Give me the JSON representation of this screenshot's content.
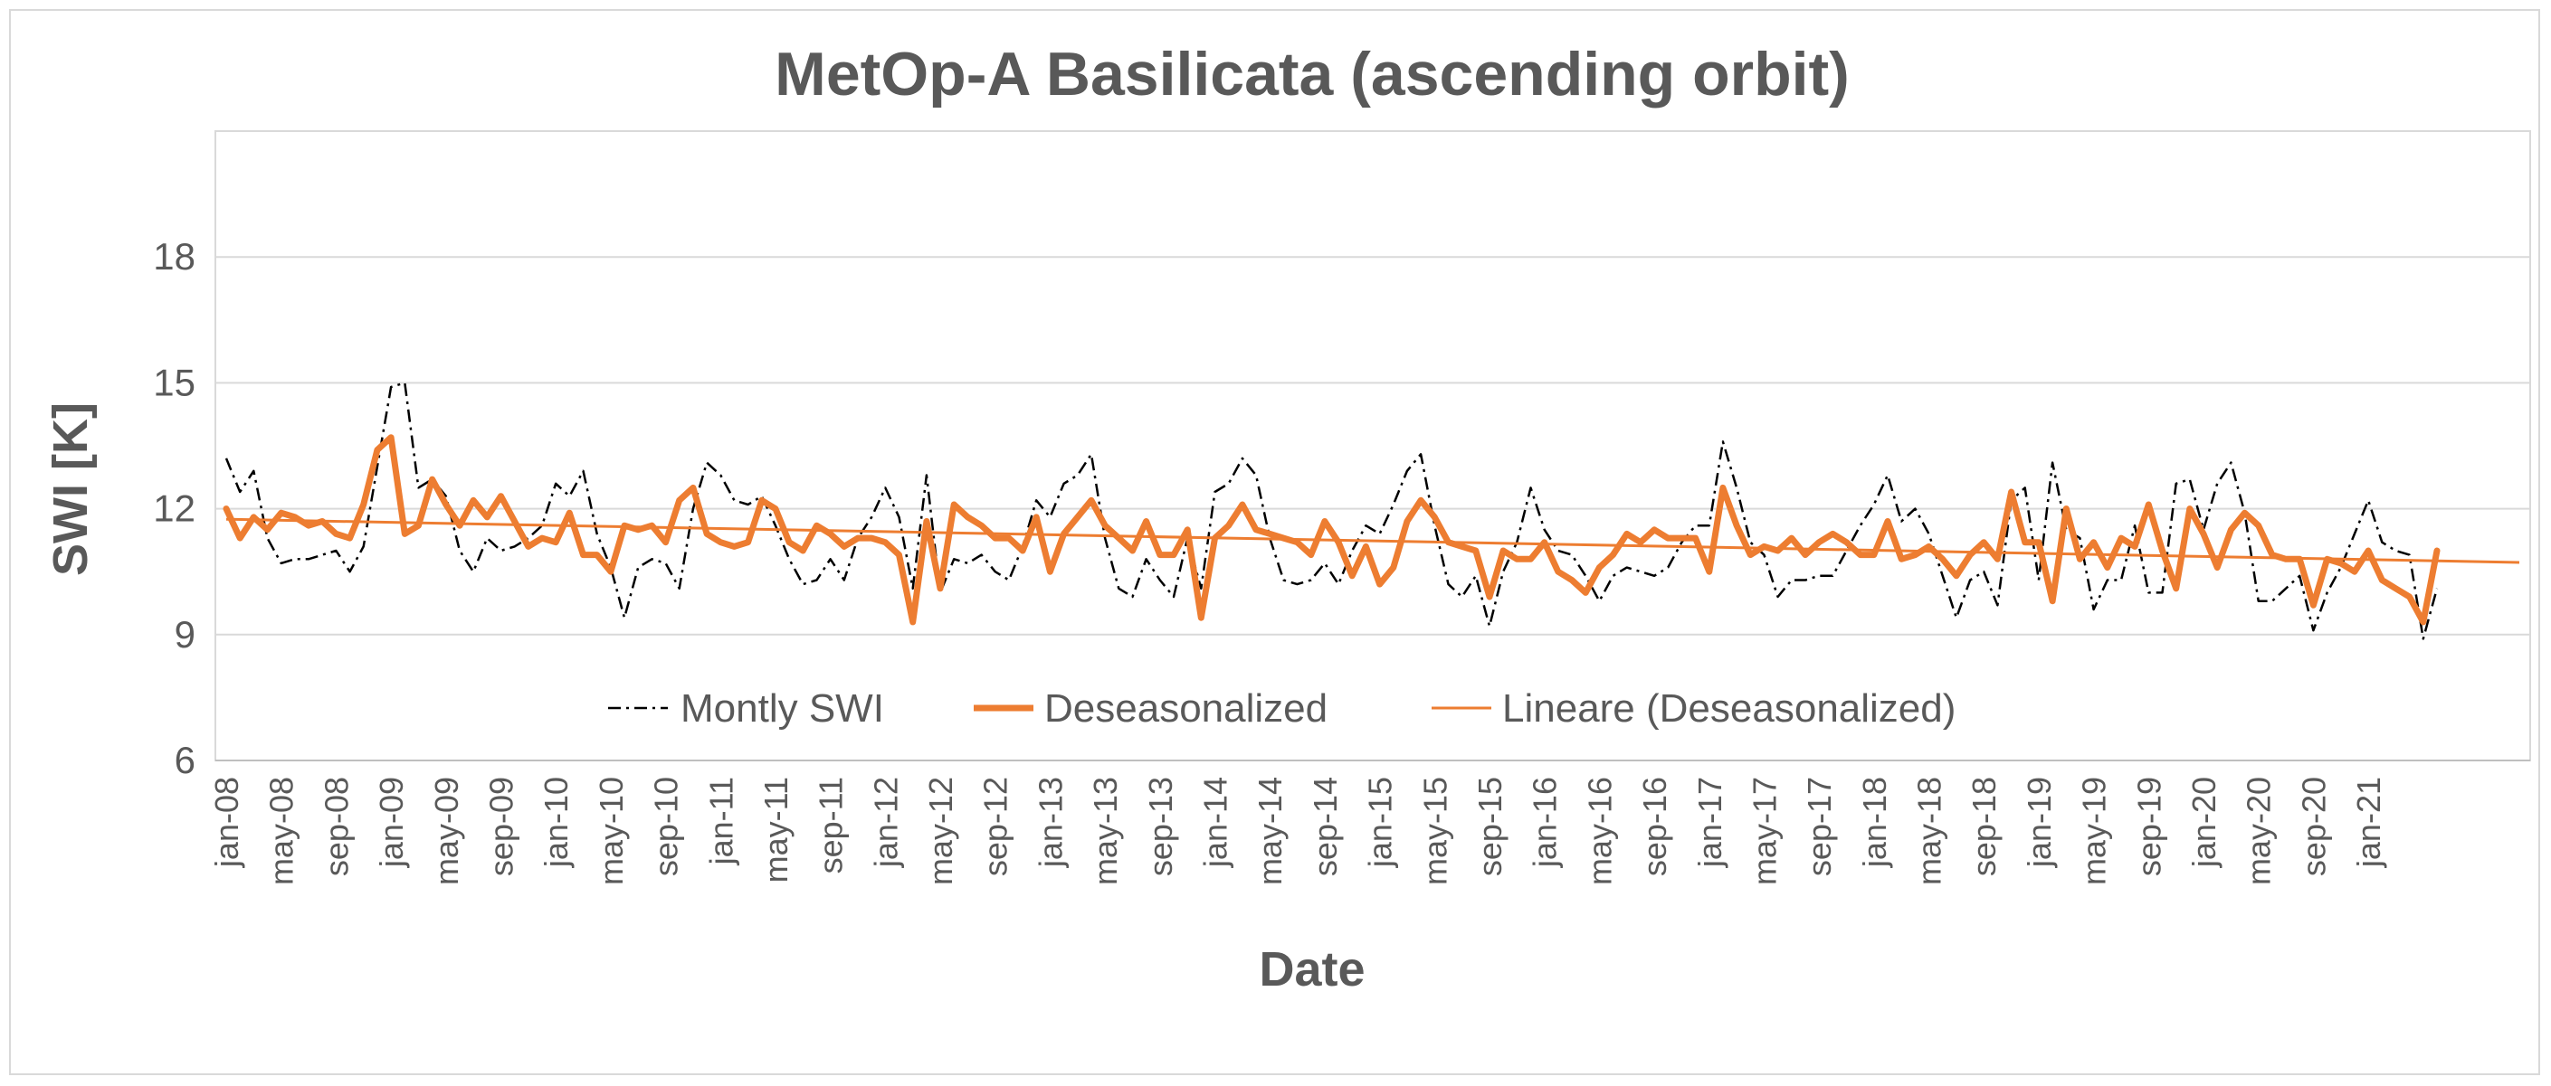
{
  "chart_data": {
    "type": "line",
    "title": "MetOp-A Basilicata (ascending orbit)",
    "xlabel": "Date",
    "ylabel": "SWI [K]",
    "ylim": [
      6,
      21
    ],
    "yticks": [
      6,
      9,
      12,
      15,
      18
    ],
    "grid": true,
    "legend_position": "bottom-inside",
    "x_start": "jan-08",
    "n_months": 168,
    "xtick_labels": [
      "jan-08",
      "may-08",
      "sep-08",
      "jan-09",
      "may-09",
      "sep-09",
      "jan-10",
      "may-10",
      "sep-10",
      "jan-11",
      "may-11",
      "sep-11",
      "jan-12",
      "may-12",
      "sep-12",
      "jan-13",
      "may-13",
      "sep-13",
      "jan-14",
      "may-14",
      "sep-14",
      "jan-15",
      "may-15",
      "sep-15",
      "jan-16",
      "may-16",
      "sep-16",
      "jan-17",
      "may-17",
      "sep-17",
      "jan-18",
      "may-18",
      "sep-18",
      "jan-19",
      "may-19",
      "sep-19",
      "jan-20",
      "may-20",
      "sep-20",
      "jan-21"
    ],
    "series": [
      {
        "name": "Montly SWI",
        "style": "dash-dot",
        "color": "#000000",
        "values": [
          13.2,
          12.4,
          12.9,
          11.3,
          10.7,
          10.8,
          10.8,
          10.9,
          11.0,
          10.5,
          11.1,
          13.0,
          14.9,
          15.0,
          12.5,
          12.7,
          12.3,
          11.0,
          10.5,
          11.3,
          11.0,
          11.1,
          11.3,
          11.6,
          12.6,
          12.3,
          12.9,
          11.4,
          10.6,
          9.4,
          10.6,
          10.8,
          10.7,
          10.1,
          12.0,
          13.1,
          12.8,
          12.2,
          12.1,
          12.3,
          11.6,
          10.8,
          10.2,
          10.3,
          10.8,
          10.3,
          11.3,
          11.8,
          12.5,
          11.8,
          10.1,
          12.8,
          10.0,
          10.8,
          10.7,
          10.9,
          10.5,
          10.3,
          11.1,
          12.2,
          11.8,
          12.6,
          12.8,
          13.3,
          11.3,
          10.1,
          9.9,
          10.8,
          10.3,
          9.9,
          11.3,
          10.1,
          12.4,
          12.6,
          13.2,
          12.8,
          11.3,
          10.3,
          10.2,
          10.3,
          10.7,
          10.2,
          11.0,
          11.6,
          11.4,
          12.1,
          12.9,
          13.3,
          11.6,
          10.2,
          9.9,
          10.4,
          9.2,
          10.5,
          11.2,
          12.5,
          11.5,
          11.0,
          10.9,
          10.4,
          9.8,
          10.4,
          10.6,
          10.5,
          10.4,
          10.6,
          11.2,
          11.6,
          11.6,
          13.6,
          12.5,
          11.2,
          10.9,
          9.9,
          10.3,
          10.3,
          10.4,
          10.4,
          11.0,
          11.6,
          12.1,
          12.8,
          11.7,
          12.0,
          11.4,
          10.4,
          9.4,
          10.3,
          10.5,
          9.7,
          12.2,
          12.5,
          10.3,
          13.1,
          11.5,
          11.3,
          9.6,
          10.3,
          10.3,
          11.6,
          10.0,
          10.0,
          12.6,
          12.7,
          11.5,
          12.6,
          13.1,
          11.9,
          9.8,
          9.8,
          10.1,
          10.4,
          9.1,
          10.0,
          10.6,
          11.4,
          12.2,
          11.2,
          11.0,
          10.9,
          8.9,
          10.1
        ]
      },
      {
        "name": "Deseasonalized",
        "style": "solid-thick",
        "color": "#ed7d31",
        "values": [
          12.0,
          11.3,
          11.8,
          11.5,
          11.9,
          11.8,
          11.6,
          11.7,
          11.4,
          11.3,
          12.1,
          13.4,
          13.7,
          11.4,
          11.6,
          12.7,
          12.1,
          11.6,
          12.2,
          11.8,
          12.3,
          11.7,
          11.1,
          11.3,
          11.2,
          11.9,
          10.9,
          10.9,
          10.5,
          11.6,
          11.5,
          11.6,
          11.2,
          12.2,
          12.5,
          11.4,
          11.2,
          11.1,
          11.2,
          12.2,
          12.0,
          11.2,
          11.0,
          11.6,
          11.4,
          11.1,
          11.3,
          11.3,
          11.2,
          10.9,
          9.3,
          11.7,
          10.1,
          12.1,
          11.8,
          11.6,
          11.3,
          11.3,
          11.0,
          11.8,
          10.5,
          11.4,
          11.8,
          12.2,
          11.6,
          11.3,
          11.0,
          11.7,
          10.9,
          10.9,
          11.5,
          9.4,
          11.3,
          11.6,
          12.1,
          11.5,
          11.4,
          11.3,
          11.2,
          10.9,
          11.7,
          11.2,
          10.4,
          11.1,
          10.2,
          10.6,
          11.7,
          12.2,
          11.8,
          11.2,
          11.1,
          11.0,
          9.9,
          11.0,
          10.8,
          10.8,
          11.2,
          10.5,
          10.3,
          10.0,
          10.6,
          10.9,
          11.4,
          11.2,
          11.5,
          11.3,
          11.3,
          11.3,
          10.5,
          12.5,
          11.6,
          10.9,
          11.1,
          11.0,
          11.3,
          10.9,
          11.2,
          11.4,
          11.2,
          10.9,
          10.9,
          11.7,
          10.8,
          10.9,
          11.1,
          10.8,
          10.4,
          10.9,
          11.2,
          10.8,
          12.4,
          11.2,
          11.2,
          9.8,
          12.0,
          10.8,
          11.2,
          10.6,
          11.3,
          11.1,
          12.1,
          11.0,
          10.1,
          12.0,
          11.4,
          10.6,
          11.5,
          11.9,
          11.6,
          10.9,
          10.8,
          10.8,
          9.7,
          10.8,
          10.7,
          10.5,
          11.0,
          10.3,
          10.1,
          9.9,
          9.3,
          11.0
        ]
      },
      {
        "name": "Lineare (Deseasonalized)",
        "style": "solid-thin",
        "color": "#ed7d31",
        "values": [
          11.75,
          10.72
        ]
      }
    ]
  }
}
